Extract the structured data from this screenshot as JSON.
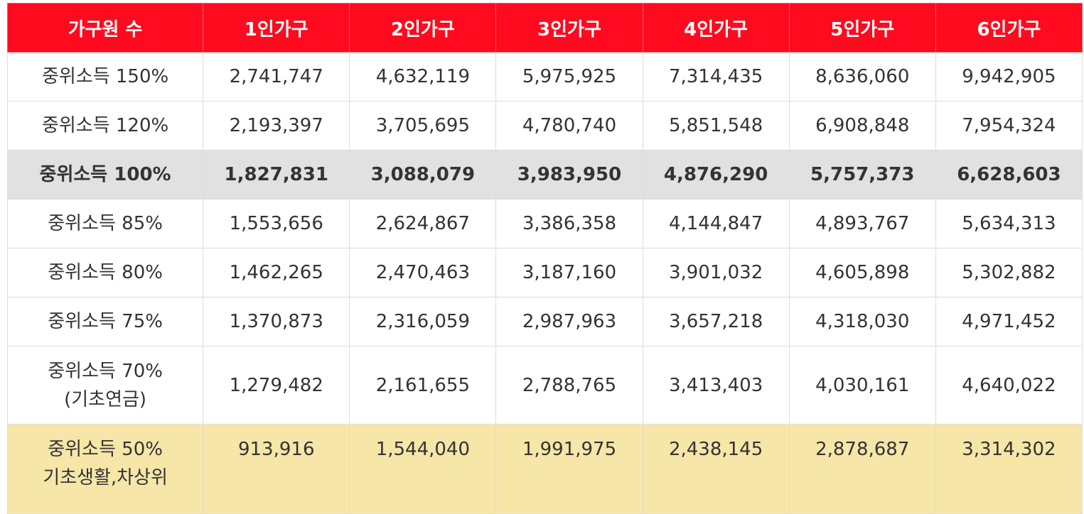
{
  "header": [
    "가구원 수",
    "1인가구",
    "2인가구",
    "3인가구",
    "4인가구",
    "5인가구",
    "6인가구"
  ],
  "rows": [
    {
      "label": [
        "중위소득 150%"
      ],
      "values": [
        "2,741,747",
        "4,632,119",
        "5,975,925",
        "7,314,435",
        "8,636,060",
        "9,942,905"
      ]
    },
    {
      "label": [
        "중위소득 120%"
      ],
      "values": [
        "2,193,397",
        "3,705,695",
        "4,780,740",
        "5,851,548",
        "6,908,848",
        "7,954,324"
      ]
    },
    {
      "label": [
        "중위소득 100%"
      ],
      "values": [
        "1,827,831",
        "3,088,079",
        "3,983,950",
        "4,876,290",
        "5,757,373",
        "6,628,603"
      ]
    },
    {
      "label": [
        "중위소득 85%"
      ],
      "values": [
        "1,553,656",
        "2,624,867",
        "3,386,358",
        "4,144,847",
        "4,893,767",
        "5,634,313"
      ]
    },
    {
      "label": [
        "중위소득 80%"
      ],
      "values": [
        "1,462,265",
        "2,470,463",
        "3,187,160",
        "3,901,032",
        "4,605,898",
        "5,302,882"
      ]
    },
    {
      "label": [
        "중위소득 75%"
      ],
      "values": [
        "1,370,873",
        "2,316,059",
        "2,987,963",
        "3,657,218",
        "4,318,030",
        "4,971,452"
      ]
    },
    {
      "label": [
        "중위소득 70%",
        "(기초연금)"
      ],
      "values": [
        "1,279,482",
        "2,161,655",
        "2,788,765",
        "3,413,403",
        "4,030,161",
        "4,640,022"
      ]
    },
    {
      "label": [
        "중위소득 50%",
        "기초생활,차상위"
      ],
      "values": [
        "913,916",
        "1,544,040",
        "1,991,975",
        "2,438,145",
        "2,878,687",
        "3,314,302"
      ]
    }
  ],
  "colors": {
    "header_bg": "#ff0a1e",
    "highlight_row_bg": "#e1e1e1",
    "yellow_row_bg": "#f6e6a8"
  }
}
